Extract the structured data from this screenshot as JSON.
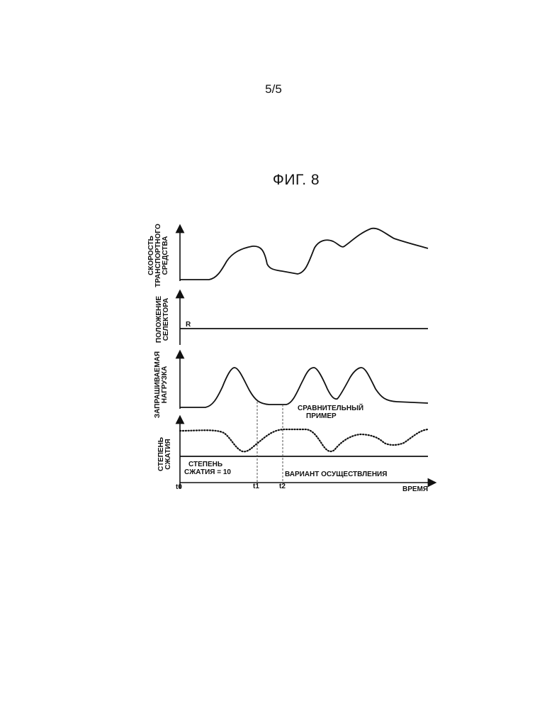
{
  "page_number": "5/5",
  "figure_title": "ФИГ. 8",
  "panels": {
    "speed": {
      "label_line1": "СКОРОСТЬ",
      "label_line2": "ТРАНСПОРТНОГО",
      "label_line3": "СРЕДСТВА"
    },
    "selector": {
      "label_line1": "ПОЛОЖЕНИЕ",
      "label_line2": "СЕЛЕКТОРА",
      "position": "R"
    },
    "load": {
      "label_line1": "ЗАПРАШИВАЕМАЯ",
      "label_line2": "НАГРУЗКА"
    },
    "compression": {
      "label_line1": "СТЕПЕНЬ",
      "label_line2": "СЖАТИЯ",
      "fixed_line1": "СТЕПЕНЬ",
      "fixed_line2": "СЖАТИЯ = 10",
      "comparative_line1": "СРАВНИТЕЛЬНЫЙ",
      "comparative_line2": "ПРИМЕР",
      "embodiment": "ВАРИАНТ ОСУЩЕСТВЛЕНИЯ"
    }
  },
  "time_axis": {
    "t0": "t0",
    "t1": "t1",
    "t2": "t2",
    "label": "ВРЕМЯ"
  }
}
